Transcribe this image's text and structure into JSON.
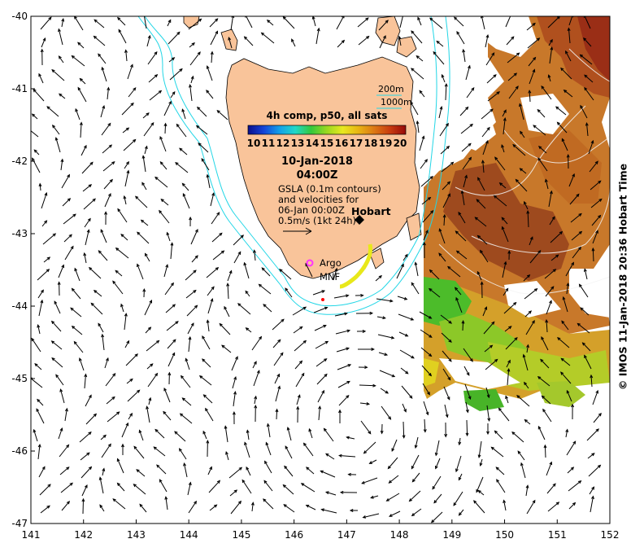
{
  "map": {
    "colorbar_title": "4h comp, p50, all sats",
    "colorbar_ticks": [
      "10",
      "11",
      "12",
      "13",
      "14",
      "15",
      "16",
      "17",
      "18",
      "19",
      "20"
    ],
    "date": "10-Jan-2018",
    "time": "04:00Z",
    "gsla_line1": "GSLA (0.1m contours)",
    "gsla_line2": "and velocities for",
    "gsla_line3": "06-Jan 00:00Z",
    "scale_label": "0.5m/s (1kt 24h)",
    "isobath_200": "200m",
    "isobath_1000": "1000m",
    "place_hobart": "Hobart",
    "place_argo": "Argo",
    "place_mnf": "MNF",
    "credit": "© IMOS 11-Jan-2018 20:36 Hobart Time",
    "x_ticks": [
      "141",
      "142",
      "143",
      "144",
      "145",
      "146",
      "147",
      "148",
      "149",
      "150",
      "151",
      "152"
    ],
    "y_ticks": [
      "-40",
      "-41",
      "-42",
      "-43",
      "-44",
      "-45",
      "-46",
      "-47"
    ],
    "colors": {
      "land": "#f9c49a",
      "isobath": "#22d6e6",
      "hobart_marker": "#000000",
      "argo_marker": "#ff33ff",
      "mnf_track": "#e8e81a",
      "colormap": [
        "#0a0f8c",
        "#1444d8",
        "#14a0e8",
        "#22d8c8",
        "#34c83c",
        "#9ad820",
        "#e8e820",
        "#e8b414",
        "#dc7814",
        "#c83c10",
        "#960a0a"
      ]
    }
  }
}
